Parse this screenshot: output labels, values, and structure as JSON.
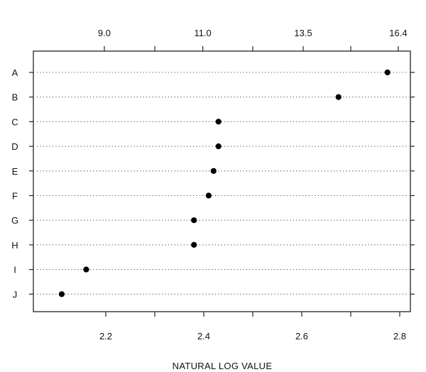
{
  "chart_data": {
    "type": "scatter",
    "subtype": "dot-plot",
    "categories": [
      "A",
      "B",
      "C",
      "D",
      "E",
      "F",
      "G",
      "H",
      "I",
      "J"
    ],
    "values": [
      2.775,
      2.675,
      2.43,
      2.43,
      2.42,
      2.41,
      2.38,
      2.38,
      2.16,
      2.11
    ],
    "xlabel": "NATURAL LOG VALUE",
    "xlim": [
      2.1,
      2.83
    ],
    "bottom_ticks": [
      {
        "value": 2.2,
        "label": "2.2"
      },
      {
        "value": 2.4,
        "label": "2.4"
      },
      {
        "value": 2.6,
        "label": "2.6"
      },
      {
        "value": 2.8,
        "label": "2.8"
      }
    ],
    "top_ticks": [
      {
        "value": 2.197,
        "label": "9.0"
      },
      {
        "value": 2.398,
        "label": "11.0"
      },
      {
        "value": 2.603,
        "label": "13.5"
      },
      {
        "value": 2.797,
        "label": "16.4"
      }
    ],
    "minor_ticks": [
      2.3,
      2.5,
      2.7
    ],
    "grid": "dotted horizontal guide lines per category",
    "colors": {
      "frame": "#222222",
      "guide": "#555555",
      "dot": "#000000",
      "text": "#111111"
    }
  }
}
